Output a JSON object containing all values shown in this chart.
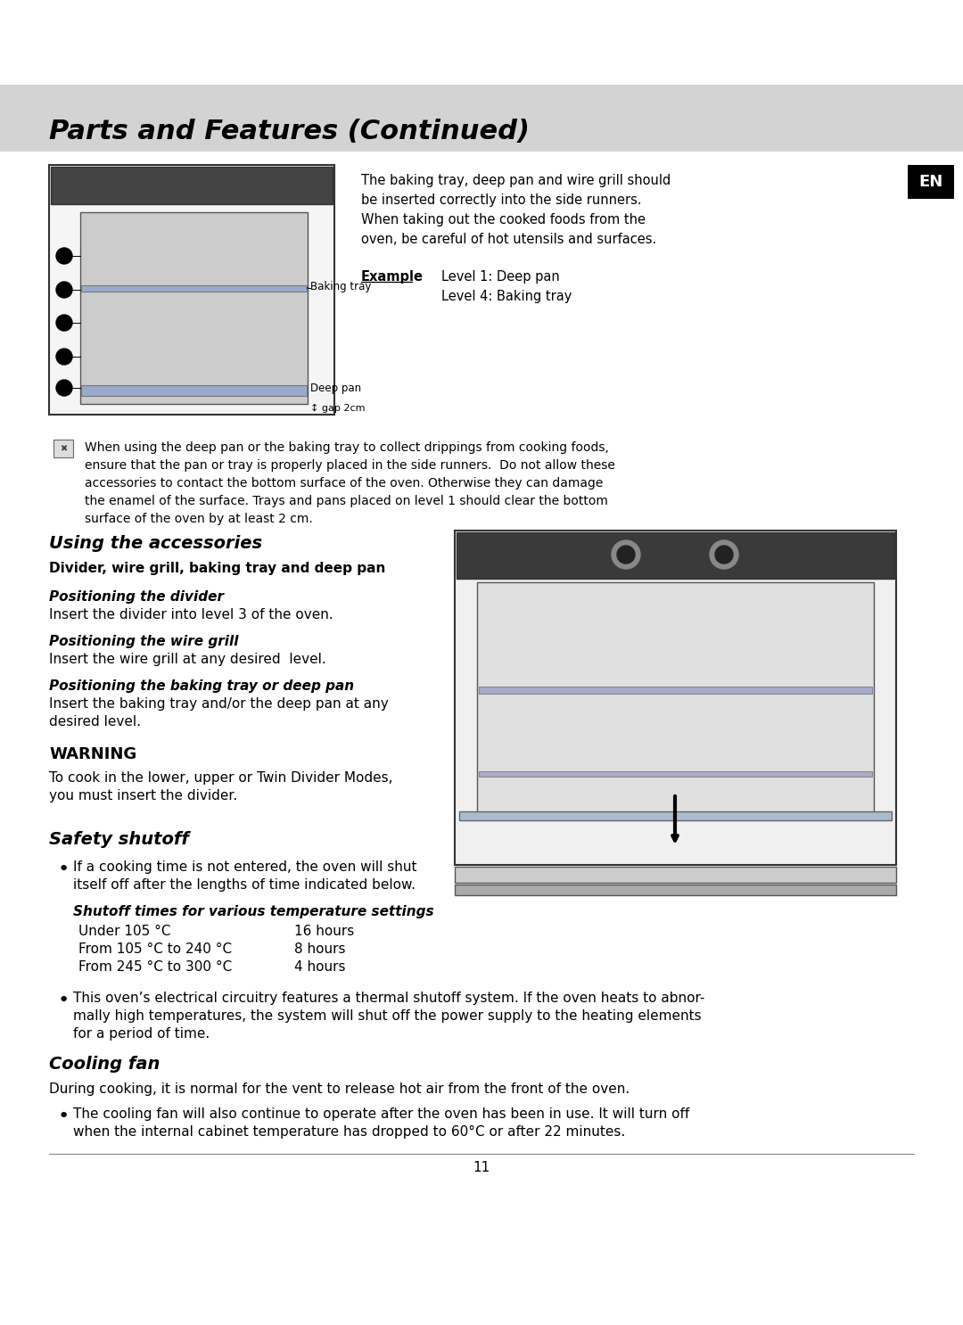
{
  "page_bg": "#ffffff",
  "header_bg": "#d3d3d3",
  "header_text": "Parts and Features (Continued)",
  "header_font_size": 22,
  "en_box_bg": "#000000",
  "en_text": "EN",
  "en_text_color": "#ffffff",
  "section1_text_lines": [
    "The baking tray, deep pan and wire grill should",
    "be inserted correctly into the side runners.",
    "When taking out the cooked foods from the",
    "oven, be careful of hot utensils and surfaces."
  ],
  "example_label": "Example",
  "example_lines": [
    "Level 1: Deep pan",
    "Level 4: Baking tray"
  ],
  "note_text": "When using the deep pan or the baking tray to collect drippings from cooking foods,\nensure that the pan or tray is properly placed in the side runners.  Do not allow these\naccessories to contact the bottom surface of the oven. Otherwise they can damage\nthe enamel of the surface. Trays and pans placed on level 1 should clear the bottom\nsurface of the oven by at least 2 cm.",
  "section_using": "Using the accessories",
  "subsection1_bold": "Divider, wire grill, baking tray and deep pan",
  "pos1_title": "Positioning the divider",
  "pos1_text": "Insert the divider into level 3 of the oven.",
  "pos2_title": "Positioning the wire grill",
  "pos2_text": "Insert the wire grill at any desired  level.",
  "pos3_title": "Positioning the baking tray or deep pan",
  "pos3_text": "Insert the baking tray and/or the deep pan at any\ndesired level.",
  "warning_title": "WARNING",
  "warning_text": "To cook in the lower, upper or Twin Divider Modes,\nyou must insert the divider.",
  "section_safety": "Safety shutoff",
  "safety_bullet1": "If a cooking time is not entered, the oven will shut\nitself off after the lengths of time indicated below.",
  "shutoff_title": "Shutoff times for various temperature settings",
  "shutoff_rows": [
    [
      "Under 105 °C",
      "16 hours"
    ],
    [
      "From 105 °C to 240 °C",
      "8 hours"
    ],
    [
      "From 245 °C to 300 °C",
      "4 hours"
    ]
  ],
  "safety_bullet2": "This oven’s electrical circuitry features a thermal shutoff system. If the oven heats to abnor-\nmally high temperatures, the system will shut off the power supply to the heating elements\nfor a period of time.",
  "section_cooling": "Cooling fan",
  "cooling_text": "During cooking, it is normal for the vent to release hot air from the front of the oven.",
  "cooling_bullet": "The cooling fan will also continue to operate after the oven has been in use. It will turn off\nwhen the internal cabinet temperature has dropped to 60°C or after 22 minutes.",
  "page_number": "11",
  "separator_color": "#888888"
}
